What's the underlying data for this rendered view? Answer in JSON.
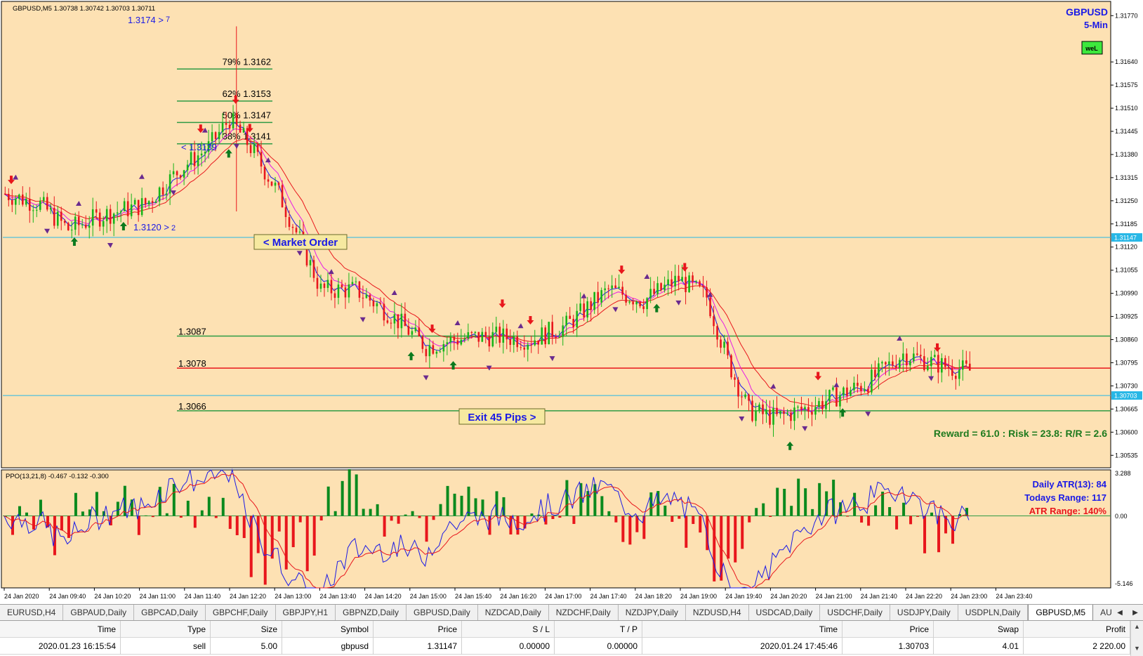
{
  "chart": {
    "header": "GBPUSD,M5  1.30738 1.30742 1.30703 1.30711",
    "symbol": "GBPUSD",
    "timeframe": "5-Min",
    "badge": "weL",
    "price_ticks": [
      "1.31770",
      "1.31640",
      "1.31575",
      "1.31510",
      "1.31445",
      "1.31380",
      "1.31315",
      "1.31250",
      "1.31185",
      "1.31120",
      "1.31055",
      "1.30990",
      "1.30925",
      "1.30860",
      "1.30795",
      "1.30730",
      "1.30665",
      "1.30600",
      "1.30535"
    ],
    "price_range": [
      1.305,
      1.3181
    ],
    "current_price_tag": "1.30703",
    "market_order_tag": "1.31147",
    "fib_labels": [
      {
        "label": "79% 1.3162",
        "price": 1.3162
      },
      {
        "label": "62% 1.3153",
        "price": 1.3153
      },
      {
        "label": "50% 1.3147",
        "price": 1.3147
      },
      {
        "label": "38% 1.3141",
        "price": 1.3141
      }
    ],
    "high_label": "1.3174 >",
    "high_count": "7",
    "entry_label": "< 1.3139",
    "low_label": "1.3120 >",
    "low_count": "2",
    "level_labels": [
      {
        "label": "1.3087",
        "price": 1.3087,
        "color": "#2e9b45"
      },
      {
        "label": "1.3078",
        "price": 1.3078,
        "color": "#e8161c"
      },
      {
        "label": "1.3066",
        "price": 1.3066,
        "color": "#2e9b45"
      }
    ],
    "market_order_label": "< Market Order",
    "exit_label": "Exit 45 Pips >",
    "reward_text": "Reward = 61.0 : Risk = 23.8: R/R = 2.6",
    "time_labels": [
      "24 Jan 2020",
      "24 Jan 09:40",
      "24 Jan 10:20",
      "24 Jan 11:00",
      "24 Jan 11:40",
      "24 Jan 12:20",
      "24 Jan 13:00",
      "24 Jan 13:40",
      "24 Jan 14:20",
      "24 Jan 15:00",
      "24 Jan 15:40",
      "24 Jan 16:20",
      "24 Jan 17:00",
      "24 Jan 17:40",
      "24 Jan 18:20",
      "24 Jan 19:00",
      "24 Jan 19:40",
      "24 Jan 20:20",
      "24 Jan 21:00",
      "24 Jan 21:40",
      "24 Jan 22:20",
      "24 Jan 23:00",
      "24 Jan 23:40"
    ],
    "colors": {
      "background": "#fde1b3",
      "bull": "#18b418",
      "bear": "#e8161c",
      "blue": "#1a1ae6",
      "green_level": "#2e9b45",
      "cyan": "#27b7e6"
    }
  },
  "indicator": {
    "label": "PPO(13,21,8) -0.467 -0.132 -0.300",
    "top_tick": "3.288",
    "bottom_tick": "-5.146",
    "zero_tick": "0.00",
    "atr_text": "Daily ATR(13): 84",
    "range_text": "Todays Range: 117",
    "atr_range_text": "ATR Range: 140%"
  },
  "tabs": [
    "EURUSD,H4",
    "GBPAUD,Daily",
    "GBPCAD,Daily",
    "GBPCHF,Daily",
    "GBPJPY,H1",
    "GBPNZD,Daily",
    "GBPUSD,Daily",
    "NZDCAD,Daily",
    "NZDCHF,Daily",
    "NZDJPY,Daily",
    "NZDUSD,H4",
    "USDCAD,Daily",
    "USDCHF,Daily",
    "USDJPY,Daily",
    "USDPLN,Daily",
    "GBPUSD,M5",
    "AUDUSD,Daily"
  ],
  "active_tab": 15,
  "terminal": {
    "headers": [
      "Time",
      "Type",
      "Size",
      "Symbol",
      "Price",
      "S / L",
      "T / P",
      "Time",
      "Price",
      "Swap",
      "Profit"
    ],
    "row": [
      "2020.01.23 16:15:54",
      "sell",
      "5.00",
      "gbpusd",
      "1.31147",
      "0.00000",
      "0.00000",
      "2020.01.24 17:45:46",
      "1.30703",
      "4.01",
      "2 220.00"
    ]
  }
}
